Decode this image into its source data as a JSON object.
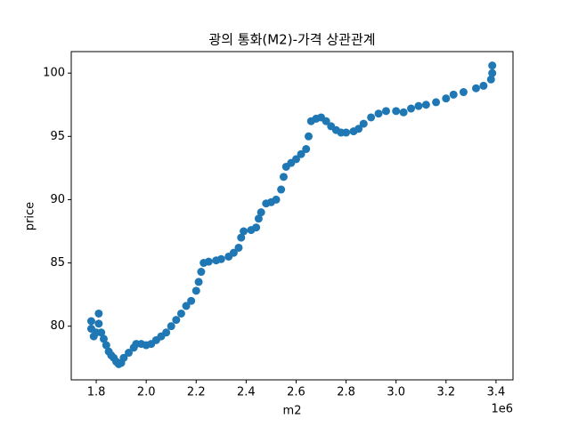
{
  "chart_data": {
    "type": "scatter",
    "title": "광의 통화(M2)-가격 상관관계",
    "x_label": "m2",
    "y_label": "price",
    "x_offset_label": "1e6",
    "series": [
      {
        "color": "#1f77b4",
        "x": [
          1780000,
          1780000,
          1790000,
          1800000,
          1810000,
          1810000,
          1820000,
          1830000,
          1840000,
          1850000,
          1860000,
          1870000,
          1880000,
          1890000,
          1900000,
          1910000,
          1930000,
          1950000,
          1960000,
          1980000,
          2000000,
          2020000,
          2040000,
          2060000,
          2080000,
          2100000,
          2120000,
          2140000,
          2160000,
          2180000,
          2200000,
          2210000,
          2220000,
          2230000,
          2250000,
          2280000,
          2300000,
          2330000,
          2350000,
          2370000,
          2380000,
          2390000,
          2420000,
          2440000,
          2450000,
          2460000,
          2480000,
          2500000,
          2520000,
          2540000,
          2550000,
          2560000,
          2580000,
          2600000,
          2620000,
          2640000,
          2650000,
          2660000,
          2680000,
          2700000,
          2720000,
          2740000,
          2760000,
          2780000,
          2800000,
          2830000,
          2850000,
          2870000,
          2900000,
          2930000,
          2960000,
          3000000,
          3030000,
          3060000,
          3090000,
          3120000,
          3160000,
          3200000,
          3230000,
          3270000,
          3320000,
          3350000,
          3380000,
          3385000,
          3385000
        ],
        "values": [
          80.4,
          79.8,
          79.2,
          79.5,
          81.0,
          80.2,
          79.5,
          79.0,
          78.5,
          78.0,
          77.7,
          77.5,
          77.2,
          77.0,
          77.1,
          77.5,
          77.9,
          78.3,
          78.6,
          78.6,
          78.5,
          78.6,
          78.9,
          79.2,
          79.5,
          80.0,
          80.5,
          81.0,
          81.6,
          82.0,
          82.8,
          83.5,
          84.3,
          85.0,
          85.1,
          85.2,
          85.3,
          85.5,
          85.8,
          86.2,
          87.0,
          87.5,
          87.6,
          87.8,
          88.5,
          89.0,
          89.7,
          89.8,
          90.0,
          90.8,
          91.8,
          92.6,
          92.9,
          93.2,
          93.6,
          94.0,
          95.0,
          96.2,
          96.4,
          96.5,
          96.2,
          95.8,
          95.5,
          95.3,
          95.3,
          95.4,
          95.6,
          96.0,
          96.5,
          96.8,
          97.0,
          97.0,
          96.9,
          97.2,
          97.4,
          97.5,
          97.7,
          98.0,
          98.3,
          98.5,
          98.8,
          99.0,
          99.5,
          100.0,
          100.6
        ]
      }
    ],
    "xlim": [
      1700000,
      3468000
    ],
    "ylim": [
      75.76,
      101.7
    ],
    "xticks": [
      {
        "value": 1800000,
        "label": "1.8"
      },
      {
        "value": 2000000,
        "label": "2.0"
      },
      {
        "value": 2200000,
        "label": "2.2"
      },
      {
        "value": 2400000,
        "label": "2.4"
      },
      {
        "value": 2600000,
        "label": "2.6"
      },
      {
        "value": 2800000,
        "label": "2.8"
      },
      {
        "value": 3000000,
        "label": "3.0"
      },
      {
        "value": 3200000,
        "label": "3.2"
      },
      {
        "value": 3400000,
        "label": "3.4"
      }
    ],
    "yticks": [
      80,
      85,
      90,
      95,
      100
    ],
    "grid": false
  }
}
